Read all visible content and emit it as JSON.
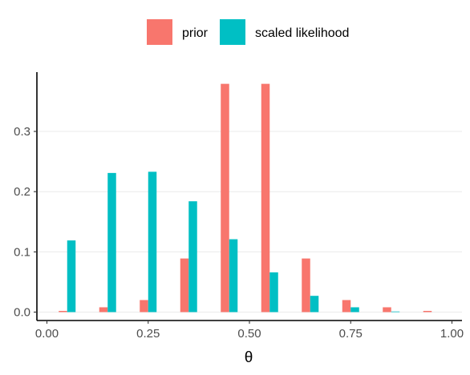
{
  "chart_data": {
    "type": "bar",
    "xlabel": "θ",
    "ylabel": "",
    "legend_position": "top",
    "grid": "horizontal major",
    "xlim": [
      0,
      1
    ],
    "ylim": [
      0,
      0.38
    ],
    "x_ticks": [
      "0.00",
      "0.25",
      "0.50",
      "0.75",
      "1.00"
    ],
    "y_ticks": [
      "0.0",
      "0.1",
      "0.2",
      "0.3"
    ],
    "x": [
      0.05,
      0.15,
      0.25,
      0.35,
      0.45,
      0.55,
      0.65,
      0.75,
      0.85,
      0.95
    ],
    "series": [
      {
        "name": "prior",
        "color": "#F8766D",
        "values": [
          0.002,
          0.008,
          0.02,
          0.089,
          0.379,
          0.379,
          0.089,
          0.02,
          0.008,
          0.002
        ]
      },
      {
        "name": "scaled likelihood",
        "color": "#00BFC4",
        "values": [
          0.119,
          0.231,
          0.233,
          0.184,
          0.121,
          0.066,
          0.027,
          0.008,
          0.001,
          0.0
        ]
      }
    ]
  }
}
